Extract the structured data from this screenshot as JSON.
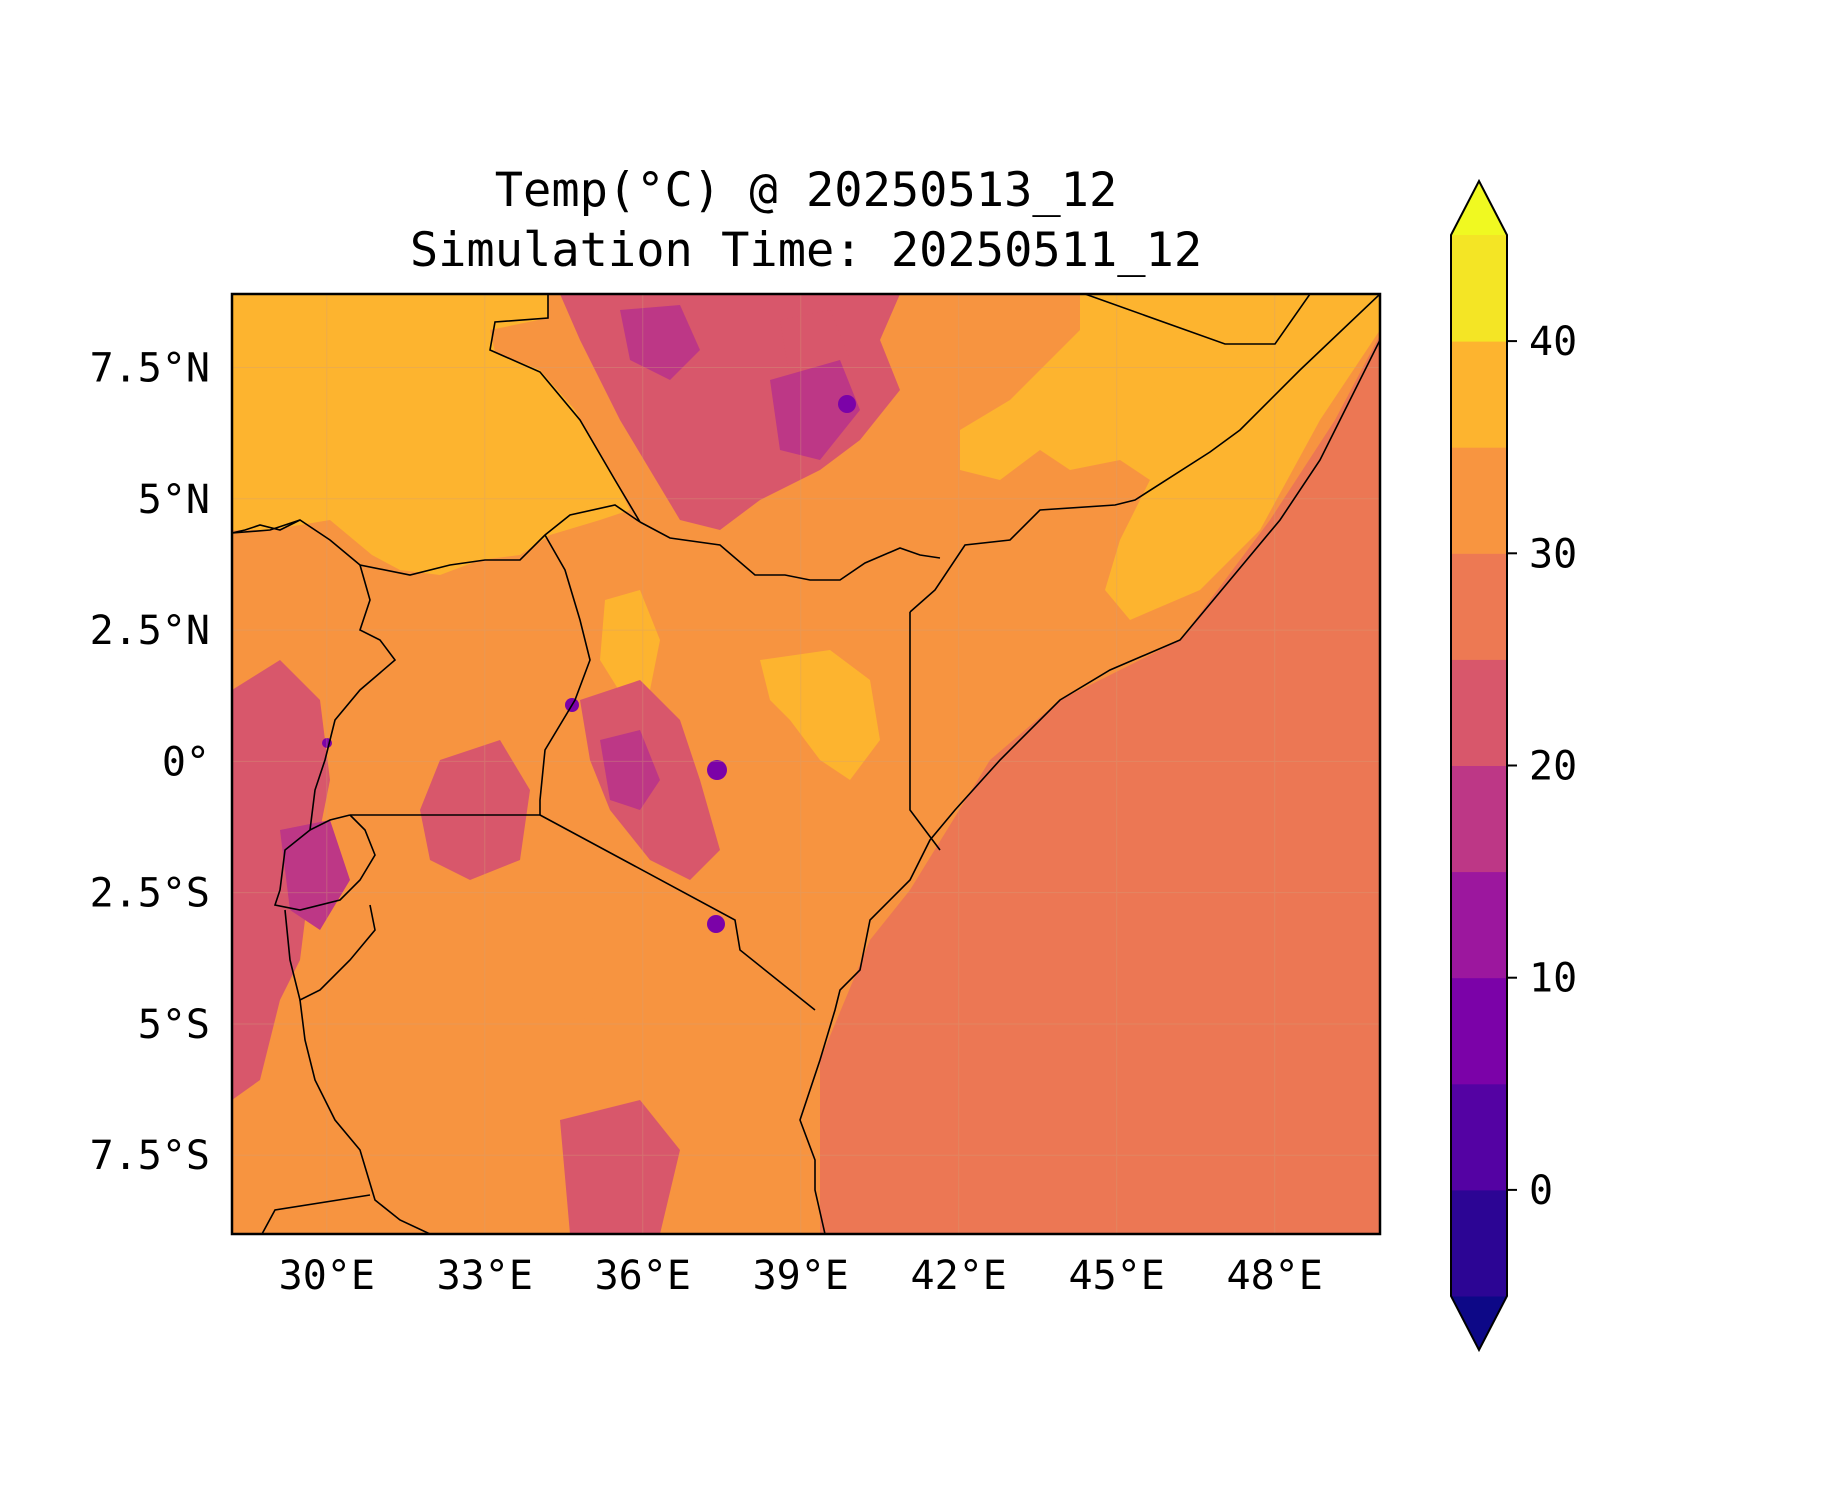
{
  "map": {
    "title": "Temp(°C) @ 20250513_12",
    "subtitle": "Simulation Time: 20250511_12",
    "lon_range": [
      28.2,
      50.0
    ],
    "lat_range": [
      -9.0,
      8.9
    ],
    "x_ticks": [
      "30°E",
      "33°E",
      "36°E",
      "39°E",
      "42°E",
      "45°E",
      "48°E"
    ],
    "x_tick_values": [
      30,
      33,
      36,
      39,
      42,
      45,
      48
    ],
    "y_ticks": [
      "7.5°N",
      "5°N",
      "2.5°N",
      "0°",
      "2.5°S",
      "5°S",
      "7.5°S"
    ],
    "y_tick_values": [
      7.5,
      5,
      2.5,
      0,
      -2.5,
      -5,
      -7.5
    ],
    "gridlines": true,
    "land_borders": "black outlines"
  },
  "colorbar": {
    "orientation": "vertical",
    "placement": "right",
    "extend": "both",
    "levels": [
      -5,
      0,
      5,
      10,
      15,
      20,
      25,
      30,
      35,
      40,
      45
    ],
    "colors": [
      "#0d0887",
      "#2c0594",
      "#5402a3",
      "#7b02a8",
      "#9c179e",
      "#bd3786",
      "#d8576b",
      "#ed7953",
      "#f89540",
      "#fdb42f",
      "#f4e525",
      "#f0f921"
    ],
    "tick_labels": [
      "0",
      "10",
      "20",
      "30",
      "40"
    ],
    "tick_values": [
      0,
      10,
      20,
      30,
      40
    ]
  },
  "palette": {
    "ocean": "#ec7754",
    "hot_lowland": "#fdb42f",
    "warm": "#f79440",
    "mild": "#d8576b",
    "cool": "#bd3786",
    "cold": "#9c179e",
    "coldest": "#7b02a8"
  }
}
